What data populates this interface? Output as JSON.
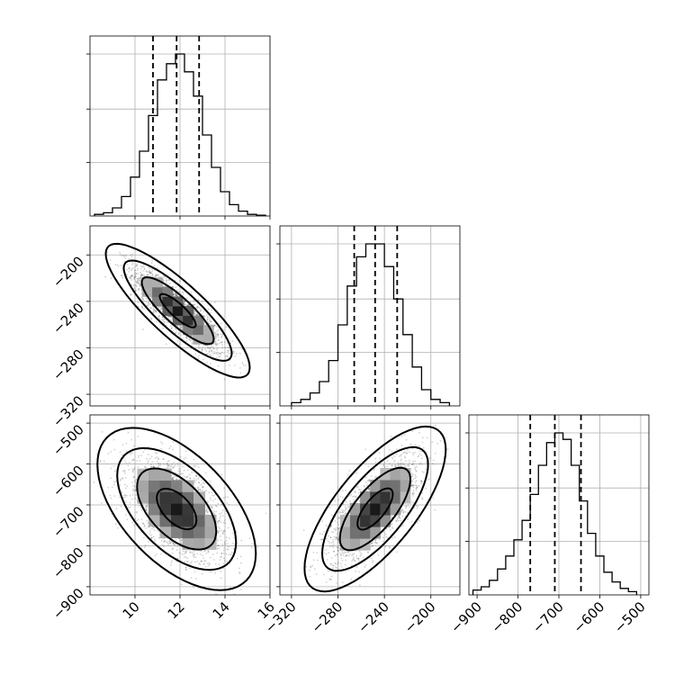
{
  "chart_data": {
    "type": "corner",
    "parameters": [
      {
        "id": "p0",
        "range": [
          8,
          16
        ],
        "ticks": [
          10,
          12,
          14,
          16
        ],
        "tick_labels": [
          "10",
          "12",
          "14",
          "16"
        ],
        "quantiles": [
          10.8,
          11.85,
          12.85
        ],
        "hist_bins": [
          8.2,
          8.6,
          9.0,
          9.4,
          9.8,
          10.2,
          10.6,
          11.0,
          11.4,
          11.8,
          12.2,
          12.6,
          13.0,
          13.4,
          13.8,
          14.2,
          14.6,
          15.0,
          15.4,
          15.8
        ],
        "hist_counts": [
          0.01,
          0.02,
          0.05,
          0.12,
          0.24,
          0.4,
          0.62,
          0.84,
          0.94,
          1.0,
          0.89,
          0.74,
          0.5,
          0.3,
          0.15,
          0.07,
          0.03,
          0.01,
          0.005
        ]
      },
      {
        "id": "p1",
        "range": [
          -330,
          -175
        ],
        "ticks": [
          -320,
          -280,
          -240,
          -200
        ],
        "tick_labels": [
          "−320",
          "−280",
          "−240",
          "−200"
        ],
        "quantiles": [
          -266,
          -248,
          -229
        ],
        "hist_bins": [
          -320,
          -312,
          -304,
          -296,
          -288,
          -280,
          -272,
          -264,
          -256,
          -248,
          -240,
          -232,
          -224,
          -216,
          -208,
          -200,
          -192,
          -184
        ],
        "hist_counts": [
          0.02,
          0.04,
          0.08,
          0.15,
          0.28,
          0.5,
          0.74,
          0.92,
          1.0,
          1.0,
          0.86,
          0.66,
          0.44,
          0.24,
          0.1,
          0.04,
          0.02
        ]
      },
      {
        "id": "p2",
        "range": [
          -920,
          -480
        ],
        "ticks": [
          -900,
          -800,
          -700,
          -600,
          -500
        ],
        "tick_labels": [
          "−900",
          "−800",
          "−700",
          "−600",
          "−500"
        ],
        "quantiles": [
          -770,
          -710,
          -646
        ],
        "hist_bins": [
          -910,
          -890,
          -870,
          -850,
          -830,
          -810,
          -790,
          -770,
          -750,
          -730,
          -710,
          -690,
          -670,
          -650,
          -630,
          -610,
          -590,
          -570,
          -550,
          -530,
          -510
        ],
        "hist_counts": [
          0.03,
          0.05,
          0.09,
          0.16,
          0.24,
          0.34,
          0.46,
          0.62,
          0.8,
          0.94,
          1.0,
          0.96,
          0.8,
          0.58,
          0.38,
          0.24,
          0.14,
          0.08,
          0.04,
          0.02
        ]
      }
    ],
    "pairs": [
      {
        "x": "p0",
        "y": "p1",
        "center": [
          11.9,
          -248
        ],
        "sd": [
          1.0,
          18
        ],
        "corr": -0.85
      },
      {
        "x": "p0",
        "y": "p2",
        "center": [
          11.85,
          -710
        ],
        "sd": [
          1.1,
          62
        ],
        "corr": -0.55
      },
      {
        "x": "p1",
        "y": "p2",
        "center": [
          -248,
          -710
        ],
        "sd": [
          19,
          63
        ],
        "corr": 0.72
      }
    ],
    "contour_levels_sigma": [
      0.5,
      1.0,
      1.5,
      2.0
    ],
    "grid": true,
    "legend": null
  }
}
